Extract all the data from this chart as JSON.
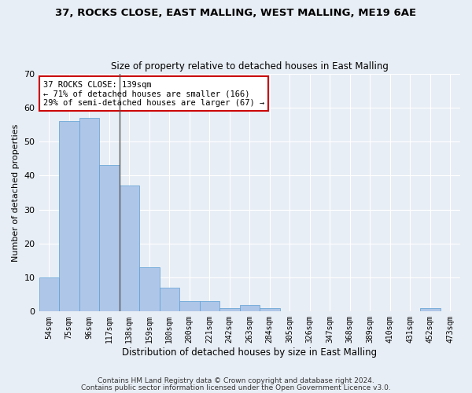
{
  "title1": "37, ROCKS CLOSE, EAST MALLING, WEST MALLING, ME19 6AE",
  "title2": "Size of property relative to detached houses in East Malling",
  "xlabel": "Distribution of detached houses by size in East Malling",
  "ylabel": "Number of detached properties",
  "categories": [
    "54sqm",
    "75sqm",
    "96sqm",
    "117sqm",
    "138sqm",
    "159sqm",
    "180sqm",
    "200sqm",
    "221sqm",
    "242sqm",
    "263sqm",
    "284sqm",
    "305sqm",
    "326sqm",
    "347sqm",
    "368sqm",
    "389sqm",
    "410sqm",
    "431sqm",
    "452sqm",
    "473sqm"
  ],
  "values": [
    10,
    56,
    57,
    43,
    37,
    13,
    7,
    3,
    3,
    1,
    2,
    1,
    0,
    0,
    0,
    0,
    0,
    0,
    0,
    1,
    0
  ],
  "bar_color": "#aec6e8",
  "bar_edge_color": "#5a9fd4",
  "property_line_index": 3.5,
  "annotation_text": "37 ROCKS CLOSE: 139sqm\n← 71% of detached houses are smaller (166)\n29% of semi-detached houses are larger (67) →",
  "annotation_box_color": "#ffffff",
  "annotation_box_edge": "#cc0000",
  "ylim": [
    0,
    70
  ],
  "yticks": [
    0,
    10,
    20,
    30,
    40,
    50,
    60,
    70
  ],
  "footer1": "Contains HM Land Registry data © Crown copyright and database right 2024.",
  "footer2": "Contains public sector information licensed under the Open Government Licence v3.0.",
  "bg_color": "#e8eef5",
  "grid_color": "#ffffff"
}
